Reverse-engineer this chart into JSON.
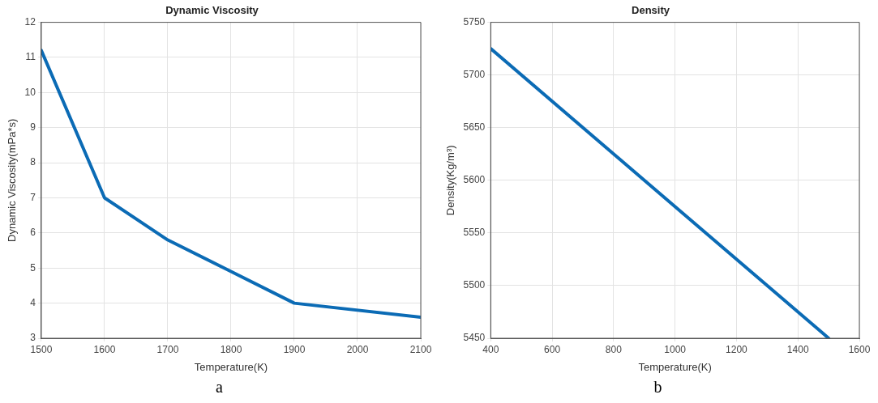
{
  "chart_data": [
    {
      "type": "line",
      "title": "Dynamic Viscosity",
      "xlabel": "Temperature(K)",
      "ylabel": "Dynamic Viscosity(mPa*s)",
      "x": [
        1500,
        1600,
        1700,
        1800,
        1900,
        2100
      ],
      "series": [
        {
          "color": "#0b6bb5",
          "values": [
            11.2,
            7.0,
            5.8,
            4.9,
            4.0,
            3.6
          ]
        }
      ],
      "xlim": [
        1500,
        2100
      ],
      "xticks": [
        1500,
        1600,
        1700,
        1800,
        1900,
        2000,
        2100
      ],
      "ylim": [
        3,
        12
      ],
      "yticks": [
        3,
        4,
        5,
        6,
        7,
        8,
        9,
        10,
        11,
        12
      ],
      "grid": true,
      "legend": false,
      "marker": "none",
      "line_style": "solid",
      "annotations": [
        "a"
      ]
    },
    {
      "type": "line",
      "title": "Density",
      "xlabel": "Temperature(K)",
      "ylabel": "Density(Kg/m³)",
      "x": [
        400,
        1500
      ],
      "series": [
        {
          "color": "#0b6bb5",
          "values": [
            5725,
            5450
          ]
        }
      ],
      "xlim": [
        400,
        1600
      ],
      "xticks": [
        400,
        600,
        800,
        1000,
        1200,
        1400,
        1600
      ],
      "ylim": [
        5450,
        5750
      ],
      "yticks": [
        5450,
        5500,
        5550,
        5600,
        5650,
        5700,
        5750
      ],
      "grid": true,
      "legend": false,
      "marker": "none",
      "line_style": "solid",
      "annotations": [
        "b"
      ]
    }
  ]
}
